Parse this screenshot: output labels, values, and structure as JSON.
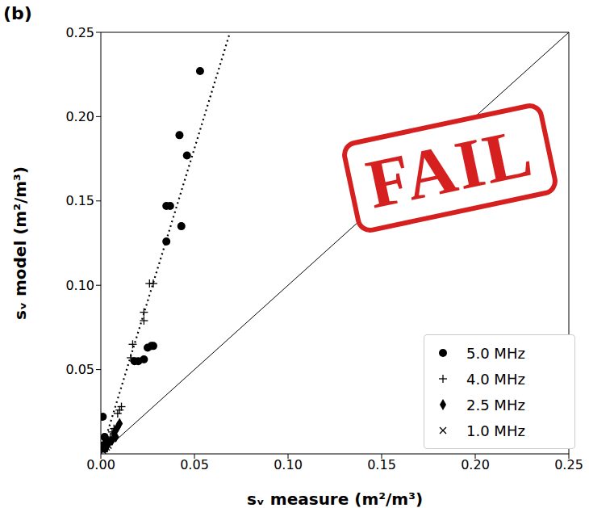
{
  "chart_data": {
    "type": "scatter",
    "title": "(b)",
    "x_label": "sᵥ measure (m²/m³)",
    "y_label": "sᵥ model (m²/m³)",
    "annotation": "FAIL",
    "xlim": [
      0,
      0.25
    ],
    "ylim": [
      0,
      0.25
    ],
    "xticks": [
      {
        "value": 0,
        "label": "0.00"
      },
      0.05,
      {
        "value": 0.1,
        "label": "0.10"
      },
      0.15,
      {
        "value": 0.2,
        "label": "0.20"
      },
      0.25
    ],
    "yticks": [
      0.05,
      {
        "value": 0.1,
        "label": "0.10"
      },
      0.15,
      {
        "value": 0.2,
        "label": "0.20"
      },
      0.25
    ],
    "grid": false,
    "legend": "lower right",
    "series": [
      {
        "name": "5.0 MHz",
        "color": "#000000",
        "marker": "circle",
        "x": [
          0.053,
          0.042,
          0.046,
          0.035,
          0.037,
          0.043,
          0.035,
          0.027,
          0.025,
          0.028,
          0.023,
          0.02,
          0.018,
          0.001,
          0.002,
          0.003,
          0.001,
          0.004,
          0.002
        ],
        "values": [
          0.227,
          0.189,
          0.177,
          0.147,
          0.147,
          0.135,
          0.126,
          0.064,
          0.063,
          0.064,
          0.056,
          0.055,
          0.055,
          0.022,
          0.01,
          0.008,
          0.005,
          0.007,
          0.003
        ]
      },
      {
        "name": "4.0 MHz",
        "color": "#000000",
        "marker": "plus",
        "x": [
          0.028,
          0.026,
          0.023,
          0.023,
          0.017,
          0.016,
          0.011,
          0.01,
          0.009,
          0.007,
          0.006,
          0.005
        ],
        "values": [
          0.101,
          0.101,
          0.084,
          0.079,
          0.065,
          0.057,
          0.028,
          0.026,
          0.024,
          0.015,
          0.013,
          0.01
        ]
      },
      {
        "name": "2.5 MHz",
        "color": "#000000",
        "marker": "thin_diamond",
        "x": [
          0.01,
          0.009,
          0.008,
          0.007,
          0.008,
          0.006,
          0.004
        ],
        "values": [
          0.018,
          0.016,
          0.014,
          0.012,
          0.01,
          0.008,
          0.006
        ]
      },
      {
        "name": "1.0 MHz",
        "color": "#000000",
        "marker": "x",
        "x": [
          0.002,
          0.003,
          0.001,
          0.004
        ],
        "values": [
          0.003,
          0.004,
          0.002,
          0.005
        ]
      }
    ],
    "lines": [
      {
        "type": "line",
        "color": "#000000",
        "line_style": "dotted",
        "x": [
          0,
          0.069
        ],
        "values": [
          0,
          0.25
        ]
      },
      {
        "type": "line",
        "color": "#000000",
        "line_style": "solid",
        "x": [
          0,
          0.25
        ],
        "values": [
          0,
          0.25
        ]
      }
    ]
  }
}
